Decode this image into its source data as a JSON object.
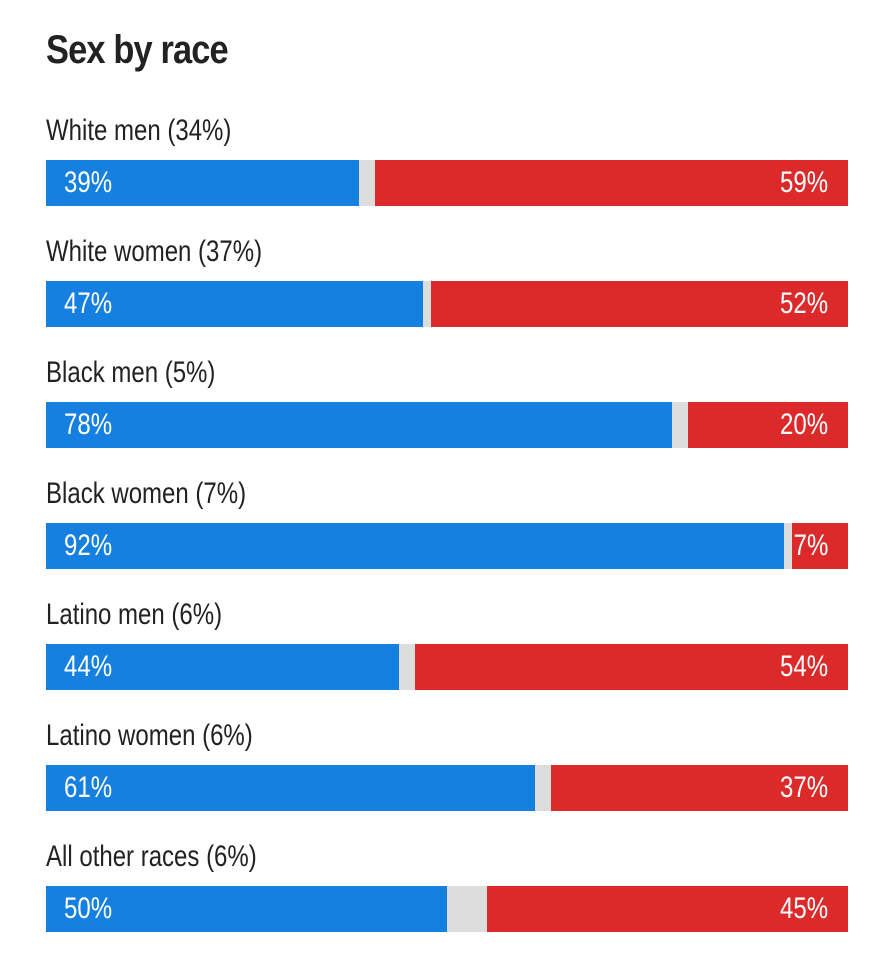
{
  "colors": {
    "dem": "#1580e0",
    "rep": "#dc2a2a",
    "other": "#dddddd"
  },
  "chart_data": {
    "type": "bar",
    "title": "Sex by race",
    "categories": [
      "White men (34%)",
      "White women (37%)",
      "Black men (5%)",
      "Black women (7%)",
      "Latino men (6%)",
      "Latino women (6%)",
      "All other races (6%)"
    ],
    "series": [
      {
        "color": "#1580e0",
        "values": [
          39,
          47,
          78,
          92,
          44,
          61,
          50
        ],
        "labels": [
          "39%",
          "47%",
          "78%",
          "92%",
          "44%",
          "61%",
          "50%"
        ]
      },
      {
        "color": "#dc2a2a",
        "values": [
          59,
          52,
          20,
          7,
          54,
          37,
          45
        ],
        "labels": [
          "59%",
          "52%",
          "20%",
          "7%",
          "54%",
          "37%",
          "45%"
        ]
      }
    ],
    "ylim": [
      0,
      100
    ]
  }
}
